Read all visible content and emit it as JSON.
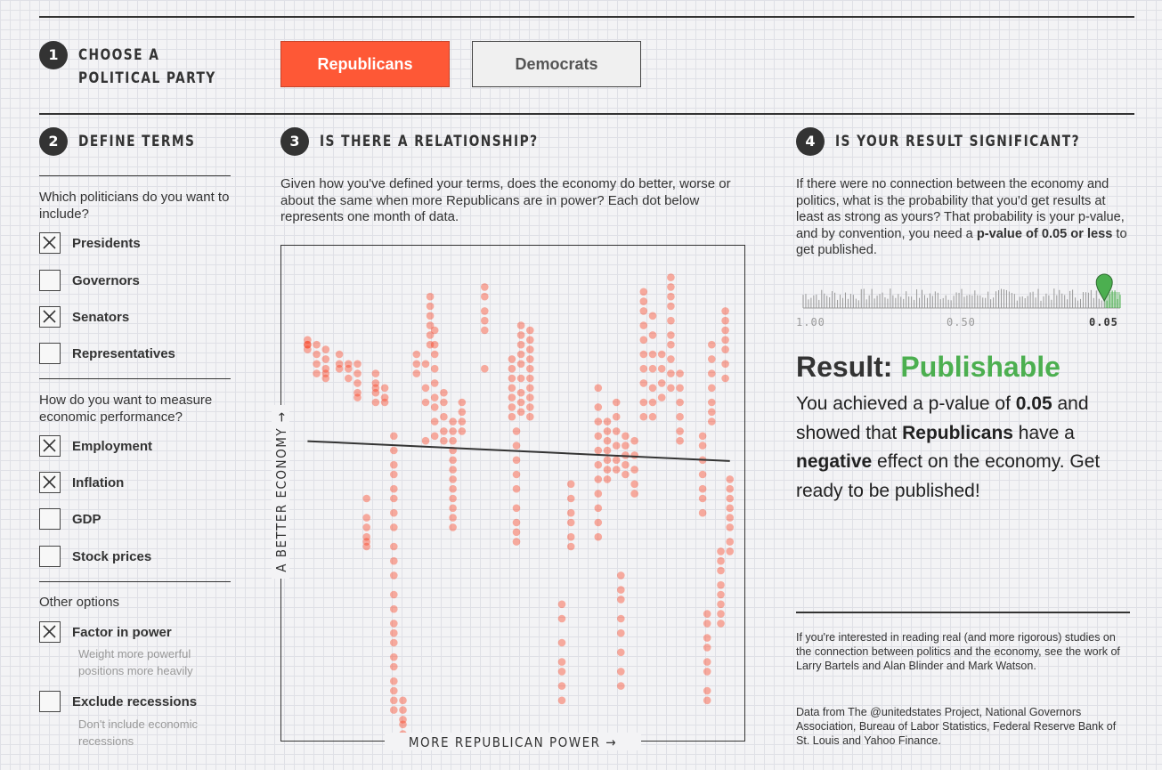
{
  "steps": {
    "one": {
      "num": "1",
      "title": "CHOOSE A\nPOLITICAL PARTY"
    },
    "two": {
      "num": "2",
      "title": "DEFINE TERMS"
    },
    "three": {
      "num": "3",
      "title": "IS THERE A RELATIONSHIP?"
    },
    "four": {
      "num": "4",
      "title": "IS YOUR RESULT SIGNIFICANT?"
    }
  },
  "party": {
    "republicans": "Republicans",
    "democrats": "Democrats",
    "selected": "Republicans",
    "selected_color": "#fe5836"
  },
  "define": {
    "politicians_q": "Which politicians do you want to include?",
    "politicians": [
      {
        "label": "Presidents",
        "checked": true
      },
      {
        "label": "Governors",
        "checked": false
      },
      {
        "label": "Senators",
        "checked": true
      },
      {
        "label": "Representatives",
        "checked": false
      }
    ],
    "measure_q": "How do you want to measure economic performance?",
    "measures": [
      {
        "label": "Employment",
        "checked": true
      },
      {
        "label": "Inflation",
        "checked": true
      },
      {
        "label": "GDP",
        "checked": false
      },
      {
        "label": "Stock prices",
        "checked": false
      }
    ],
    "other_q": "Other options",
    "other": [
      {
        "label": "Factor in power",
        "checked": true,
        "sub": "Weight more powerful positions more heavily"
      },
      {
        "label": "Exclude recessions",
        "checked": false,
        "sub": "Don't include economic recessions"
      }
    ]
  },
  "relationship": {
    "intro": "Given how you've defined your terms, does the economy do better, worse or about the same when more Republicans are in power? Each dot below represents one month of data."
  },
  "chart_data": {
    "type": "scatter",
    "xlabel": "MORE REPUBLICAN POWER →",
    "ylabel": "A BETTER ECONOMY →",
    "dot_color": "#fa3a1a",
    "trend_line": {
      "color": "#333"
    },
    "columns": [
      {
        "x": 0.04,
        "y": [
          0.83,
          0.82,
          0.81,
          0.82
        ]
      },
      {
        "x": 0.06,
        "y": [
          0.82,
          0.8,
          0.78,
          0.76
        ]
      },
      {
        "x": 0.08,
        "y": [
          0.81,
          0.79,
          0.77,
          0.75,
          0.76
        ]
      },
      {
        "x": 0.11,
        "y": [
          0.8,
          0.78,
          0.77
        ]
      },
      {
        "x": 0.13,
        "y": [
          0.78,
          0.77,
          0.75
        ]
      },
      {
        "x": 0.15,
        "y": [
          0.78,
          0.76,
          0.74,
          0.72,
          0.71
        ]
      },
      {
        "x": 0.17,
        "y": [
          0.5,
          0.46,
          0.44,
          0.42,
          0.41,
          0.4
        ]
      },
      {
        "x": 0.19,
        "y": [
          0.76,
          0.74,
          0.73,
          0.72,
          0.7
        ]
      },
      {
        "x": 0.21,
        "y": [
          0.73,
          0.71,
          0.7
        ]
      },
      {
        "x": 0.23,
        "y": [
          0.63,
          0.6,
          0.57,
          0.55,
          0.52,
          0.5,
          0.47,
          0.44,
          0.4,
          0.37,
          0.34,
          0.3,
          0.27,
          0.24,
          0.22,
          0.2,
          0.17,
          0.15,
          0.12,
          0.1,
          0.08,
          0.06
        ]
      },
      {
        "x": 0.25,
        "y": [
          0.08,
          0.06,
          0.04,
          0.03,
          0.01,
          0.0
        ]
      },
      {
        "x": 0.28,
        "y": [
          0.8,
          0.78,
          0.76
        ]
      },
      {
        "x": 0.3,
        "y": [
          0.78,
          0.73,
          0.7
        ]
      },
      {
        "x": 0.3,
        "y": [
          0.62
        ]
      },
      {
        "x": 0.31,
        "y": [
          0.92,
          0.9,
          0.88,
          0.86,
          0.84,
          0.82
        ]
      },
      {
        "x": 0.32,
        "y": [
          0.85,
          0.82,
          0.8,
          0.77,
          0.74,
          0.71,
          0.69,
          0.66,
          0.63
        ]
      },
      {
        "x": 0.34,
        "y": [
          0.72,
          0.7,
          0.67,
          0.64,
          0.62
        ]
      },
      {
        "x": 0.36,
        "y": [
          0.66,
          0.64,
          0.62,
          0.6,
          0.58,
          0.56,
          0.54,
          0.52,
          0.5,
          0.48,
          0.46,
          0.44
        ]
      },
      {
        "x": 0.38,
        "y": [
          0.7,
          0.68,
          0.66,
          0.64
        ]
      },
      {
        "x": 0.43,
        "y": [
          0.94,
          0.92,
          0.89,
          0.87,
          0.85,
          0.77
        ]
      },
      {
        "x": 0.49,
        "y": [
          0.79,
          0.77,
          0.75,
          0.73,
          0.71,
          0.69,
          0.67
        ]
      },
      {
        "x": 0.5,
        "y": [
          0.64,
          0.61,
          0.58,
          0.55,
          0.52,
          0.48,
          0.45,
          0.43,
          0.41
        ]
      },
      {
        "x": 0.51,
        "y": [
          0.86,
          0.84,
          0.82,
          0.8,
          0.78,
          0.75,
          0.72,
          0.7,
          0.68
        ]
      },
      {
        "x": 0.53,
        "y": [
          0.85,
          0.83,
          0.81,
          0.79,
          0.77,
          0.75,
          0.73,
          0.71,
          0.69,
          0.67
        ]
      },
      {
        "x": 0.6,
        "y": [
          0.28,
          0.25,
          0.2,
          0.16,
          0.14,
          0.11,
          0.08
        ]
      },
      {
        "x": 0.62,
        "y": [
          0.53,
          0.5,
          0.47,
          0.45,
          0.42,
          0.4
        ]
      },
      {
        "x": 0.68,
        "y": [
          0.73,
          0.69,
          0.66,
          0.63,
          0.6,
          0.57,
          0.54,
          0.51,
          0.48,
          0.45,
          0.42
        ]
      },
      {
        "x": 0.7,
        "y": [
          0.66,
          0.64,
          0.62,
          0.6,
          0.58,
          0.56,
          0.54
        ]
      },
      {
        "x": 0.72,
        "y": [
          0.7,
          0.67,
          0.64,
          0.61,
          0.58,
          0.56
        ]
      },
      {
        "x": 0.74,
        "y": [
          0.63,
          0.61,
          0.59,
          0.57,
          0.55
        ]
      },
      {
        "x": 0.76,
        "y": [
          0.62,
          0.59,
          0.56,
          0.53,
          0.51
        ]
      },
      {
        "x": 0.73,
        "y": [
          0.34,
          0.31,
          0.29,
          0.25,
          0.22,
          0.18,
          0.14,
          0.11
        ]
      },
      {
        "x": 0.78,
        "y": [
          0.93,
          0.91,
          0.89,
          0.86,
          0.83,
          0.8,
          0.77,
          0.74,
          0.7,
          0.67
        ]
      },
      {
        "x": 0.8,
        "y": [
          0.88,
          0.84,
          0.8,
          0.77,
          0.73,
          0.7,
          0.67
        ]
      },
      {
        "x": 0.82,
        "y": [
          0.8,
          0.77,
          0.74,
          0.71
        ]
      },
      {
        "x": 0.84,
        "y": [
          0.96,
          0.94,
          0.92,
          0.9,
          0.87,
          0.84,
          0.82,
          0.79,
          0.76,
          0.73
        ]
      },
      {
        "x": 0.86,
        "y": [
          0.76,
          0.73,
          0.7,
          0.67,
          0.64,
          0.62
        ]
      },
      {
        "x": 0.91,
        "y": [
          0.63,
          0.61,
          0.58,
          0.55,
          0.52,
          0.5,
          0.47
        ]
      },
      {
        "x": 0.92,
        "y": [
          0.26,
          0.24,
          0.21,
          0.19,
          0.16,
          0.14,
          0.1,
          0.08
        ]
      },
      {
        "x": 0.93,
        "y": [
          0.82,
          0.79,
          0.76,
          0.73,
          0.7,
          0.68,
          0.66
        ]
      },
      {
        "x": 0.95,
        "y": [
          0.39,
          0.37,
          0.35,
          0.32,
          0.3,
          0.28,
          0.26,
          0.24
        ]
      },
      {
        "x": 0.96,
        "y": [
          0.89,
          0.87,
          0.85,
          0.83,
          0.81,
          0.78,
          0.75
        ]
      },
      {
        "x": 0.97,
        "y": [
          0.54,
          0.52,
          0.5,
          0.48,
          0.46,
          0.44,
          0.41,
          0.39
        ]
      }
    ]
  },
  "significance": {
    "intro_part1": "If there were no connection between the economy and politics, what is the probability that you'd get results at least as strong as yours? That probability is your p-value, and by convention, you need a ",
    "intro_bold": "p-value of 0.05 or less",
    "intro_part2": " to get published.",
    "ticks": {
      "left": "1.00",
      "mid": "0.50",
      "right": "0.05"
    },
    "p_value": 0.05,
    "marker_color": "#4caf50",
    "result_label": "Result:",
    "result_value": "Publishable",
    "body": {
      "a": "You achieved a p-value of ",
      "p": "0.05",
      "b": " and showed that ",
      "party": "Republicans",
      "c": " have a ",
      "effect": "negative",
      "d": " effect on the economy. Get ready to be published!"
    }
  },
  "footer": {
    "studies": "If you're interested in reading real (and more rigorous) studies on the connection between politics and the economy, see the work of Larry Bartels and Alan Blinder and Mark Watson.",
    "sources": "Data from The @unitedstates Project, National Governors Association, Bureau of Labor Statistics, Federal Reserve Bank of St. Louis and Yahoo Finance."
  }
}
